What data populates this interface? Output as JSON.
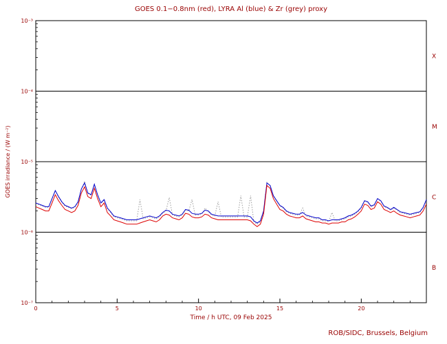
{
  "chart_data": {
    "type": "line",
    "title": "GOES 0.1−0.8nm (red), LYRA Al (blue) & Zr (grey) proxy",
    "xlabel": "Time / h UTC, 09 Feb 2025",
    "ylabel": "GOES irradiance / (W m⁻²)",
    "footer": "ROB/SIDC, Brussels, Belgium",
    "x_range": [
      0,
      24
    ],
    "x_major_ticks": [
      0,
      5,
      10,
      15,
      20
    ],
    "x_minor_step": 1,
    "y_log_range": [
      -7,
      -3
    ],
    "y_ticks": [
      {
        "exp": -3,
        "label": "10⁻³"
      },
      {
        "exp": -4,
        "label": "10⁻⁴"
      },
      {
        "exp": -5,
        "label": "10⁻⁵"
      },
      {
        "exp": -6,
        "label": "10⁻⁶"
      },
      {
        "exp": -7,
        "label": "10⁻⁷"
      }
    ],
    "class_boundaries_exp": [
      -4,
      -5,
      -6
    ],
    "class_labels": [
      {
        "label": "X",
        "mid_exp": -3.5
      },
      {
        "label": "M",
        "mid_exp": -4.5
      },
      {
        "label": "C",
        "mid_exp": -5.5
      },
      {
        "label": "B",
        "mid_exp": -6.5
      }
    ],
    "grid": false,
    "legend_position": "none",
    "values_scale": 1e-06,
    "values_unit": "W m⁻² (stored in units of 1e-6)",
    "x_step": 0.2,
    "colors": {
      "red": "#dd0000",
      "blue": "#0000cc",
      "grey": "#9a9a9a",
      "text": "#990000",
      "axis": "#000000",
      "background": "#ffffff"
    },
    "series": [
      {
        "name": "GOES 0.1-0.8nm",
        "color_key": "red",
        "style": "solid",
        "values": [
          2.3,
          2.2,
          2.1,
          2.0,
          2.0,
          2.6,
          3.4,
          2.8,
          2.4,
          2.1,
          2.0,
          1.9,
          2.0,
          2.4,
          3.6,
          4.4,
          3.2,
          3.0,
          4.2,
          3.0,
          2.3,
          2.6,
          1.9,
          1.7,
          1.5,
          1.45,
          1.4,
          1.35,
          1.3,
          1.3,
          1.3,
          1.3,
          1.35,
          1.4,
          1.45,
          1.5,
          1.45,
          1.4,
          1.5,
          1.7,
          1.8,
          1.75,
          1.6,
          1.55,
          1.5,
          1.6,
          1.85,
          1.8,
          1.65,
          1.6,
          1.6,
          1.65,
          1.8,
          1.75,
          1.6,
          1.55,
          1.5,
          1.5,
          1.5,
          1.5,
          1.5,
          1.5,
          1.5,
          1.5,
          1.5,
          1.5,
          1.45,
          1.3,
          1.2,
          1.3,
          1.8,
          4.6,
          4.2,
          3.0,
          2.5,
          2.1,
          2.0,
          1.8,
          1.7,
          1.65,
          1.6,
          1.6,
          1.7,
          1.55,
          1.5,
          1.45,
          1.4,
          1.4,
          1.35,
          1.35,
          1.3,
          1.35,
          1.35,
          1.35,
          1.4,
          1.4,
          1.5,
          1.55,
          1.65,
          1.8,
          2.0,
          2.5,
          2.4,
          2.1,
          2.2,
          2.7,
          2.5,
          2.1,
          2.0,
          1.9,
          2.0,
          1.85,
          1.75,
          1.7,
          1.65,
          1.6,
          1.65,
          1.7,
          1.75,
          2.0,
          2.5
        ]
      },
      {
        "name": "LYRA Al proxy",
        "color_key": "blue",
        "style": "solid",
        "values": [
          2.6,
          2.5,
          2.4,
          2.3,
          2.3,
          3.0,
          3.9,
          3.2,
          2.7,
          2.4,
          2.3,
          2.2,
          2.3,
          2.7,
          4.1,
          5.0,
          3.6,
          3.4,
          4.8,
          3.4,
          2.6,
          2.9,
          2.2,
          1.95,
          1.7,
          1.65,
          1.6,
          1.55,
          1.5,
          1.5,
          1.5,
          1.5,
          1.55,
          1.6,
          1.65,
          1.7,
          1.65,
          1.6,
          1.7,
          1.9,
          2.05,
          2.0,
          1.8,
          1.75,
          1.7,
          1.8,
          2.1,
          2.05,
          1.85,
          1.8,
          1.8,
          1.85,
          2.05,
          2.0,
          1.8,
          1.75,
          1.7,
          1.7,
          1.7,
          1.7,
          1.7,
          1.7,
          1.7,
          1.7,
          1.7,
          1.7,
          1.65,
          1.45,
          1.35,
          1.45,
          2.0,
          5.0,
          4.6,
          3.3,
          2.8,
          2.4,
          2.25,
          2.0,
          1.9,
          1.85,
          1.8,
          1.8,
          1.9,
          1.75,
          1.7,
          1.65,
          1.6,
          1.6,
          1.5,
          1.5,
          1.45,
          1.5,
          1.5,
          1.5,
          1.55,
          1.6,
          1.7,
          1.75,
          1.85,
          2.0,
          2.25,
          2.8,
          2.7,
          2.35,
          2.45,
          3.0,
          2.8,
          2.35,
          2.25,
          2.1,
          2.25,
          2.1,
          1.95,
          1.9,
          1.85,
          1.8,
          1.85,
          1.9,
          1.95,
          2.25,
          2.9
        ]
      },
      {
        "name": "LYRA Zr proxy",
        "color_key": "grey",
        "style": "dotted",
        "values": [
          2.55,
          2.45,
          2.35,
          2.25,
          2.25,
          2.95,
          3.85,
          3.15,
          2.65,
          2.35,
          2.25,
          2.15,
          2.25,
          2.65,
          4.05,
          5.3,
          3.55,
          3.35,
          4.75,
          3.35,
          2.55,
          2.85,
          2.15,
          1.9,
          1.65,
          1.6,
          1.55,
          1.5,
          1.45,
          1.45,
          1.45,
          1.45,
          2.9,
          1.55,
          1.6,
          1.65,
          1.6,
          1.55,
          1.65,
          1.85,
          2.0,
          3.1,
          1.75,
          1.7,
          1.65,
          1.75,
          2.05,
          2.0,
          2.9,
          1.75,
          1.75,
          1.8,
          2.2,
          1.95,
          1.75,
          1.7,
          2.7,
          1.65,
          1.65,
          1.65,
          1.65,
          1.65,
          1.65,
          3.3,
          1.65,
          1.65,
          3.3,
          1.4,
          1.3,
          1.4,
          1.95,
          5.1,
          4.55,
          3.25,
          2.75,
          2.35,
          2.2,
          1.95,
          1.85,
          1.8,
          1.75,
          1.75,
          2.2,
          1.7,
          1.65,
          1.6,
          1.55,
          1.55,
          1.45,
          1.45,
          1.4,
          1.9,
          1.45,
          1.45,
          1.5,
          1.55,
          1.65,
          1.7,
          1.8,
          1.95,
          2.2,
          2.75,
          2.65,
          2.3,
          2.4,
          2.95,
          2.75,
          2.3,
          2.2,
          2.05,
          2.2,
          2.05,
          1.9,
          1.85,
          1.8,
          1.75,
          1.8,
          1.85,
          1.9,
          2.2,
          2.85
        ]
      }
    ]
  }
}
